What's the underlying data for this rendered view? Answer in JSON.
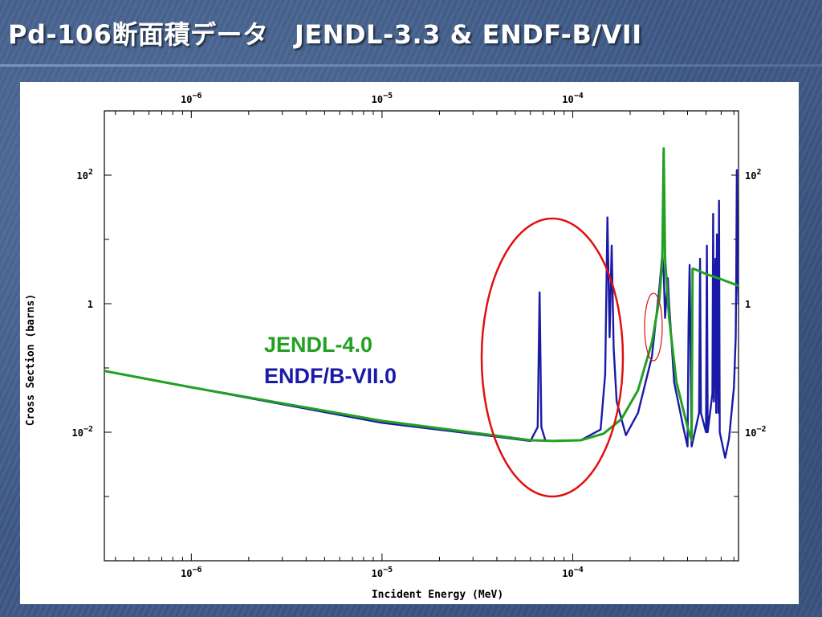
{
  "slide": {
    "title": "Pd-106断面積データ　JENDL-3.3 & ENDF-B/VII"
  },
  "chart_data": {
    "type": "line",
    "xscale": "log",
    "yscale": "log",
    "xlabel": "Incident Energy (MeV)",
    "ylabel": "Cross Section (barns)",
    "xlim": [
      3.5e-07,
      0.00074
    ],
    "ylim": [
      0.0001,
      1000
    ],
    "x_ticks": [
      {
        "value": 1e-06,
        "base": "10",
        "exp": "−6"
      },
      {
        "value": 1e-05,
        "base": "10",
        "exp": "−5"
      },
      {
        "value": 0.0001,
        "base": "10",
        "exp": "−4"
      }
    ],
    "y_ticks": [
      {
        "value": 100,
        "base": "10",
        "exp": "2"
      },
      {
        "value": 1,
        "base": "1",
        "exp": ""
      },
      {
        "value": 0.01,
        "base": "10",
        "exp": "−2"
      }
    ],
    "colors": {
      "jendl": "#22a022",
      "endf": "#1a1aa8",
      "highlight": "#e01010"
    },
    "series": [
      {
        "name": "JENDL-4.0",
        "color": "#22a022",
        "x": [
          3.5e-07,
          1e-06,
          1e-05,
          4e-05,
          6e-05,
          8e-05,
          0.00011,
          0.000145,
          0.00018,
          0.00022,
          0.00026,
          0.000285,
          0.000295,
          0.0003,
          0.000305,
          0.00032,
          0.00035,
          0.0004,
          0.00042,
          0.000425,
          0.00043,
          0.0005,
          0.0006,
          0.00074
        ],
        "y": [
          0.09,
          0.05,
          0.015,
          0.0088,
          0.0075,
          0.0073,
          0.0075,
          0.0095,
          0.016,
          0.045,
          0.25,
          1.2,
          5,
          260,
          5,
          0.6,
          0.06,
          0.012,
          0.0075,
          3.5,
          3.5,
          2.9,
          2.4,
          1.9
        ]
      },
      {
        "name": "ENDF/B-VII.0",
        "color": "#1a1aa8",
        "x": [
          3.5e-07,
          1e-06,
          1e-05,
          4e-05,
          6e-05,
          6.55e-05,
          6.7e-05,
          6.85e-05,
          7.2e-05,
          0.00011,
          0.00014,
          0.000148,
          0.000152,
          0.000156,
          0.00016,
          0.000164,
          0.00017,
          0.00019,
          0.00022,
          0.00026,
          0.000285,
          0.000295,
          0.0003,
          0.000305,
          0.000315,
          0.00032,
          0.000325,
          0.00034,
          0.00038,
          0.0004,
          0.000405,
          0.00041,
          0.00042,
          0.00046,
          0.000465,
          0.00047,
          0.0005,
          0.000505,
          0.00051,
          0.00054,
          0.000545,
          0.00055,
          0.00056,
          0.000565,
          0.00057,
          0.00058,
          0.000585,
          0.00059,
          0.00062,
          0.00063,
          0.00066,
          0.0007,
          0.000715,
          0.00072,
          0.000725,
          0.00073,
          0.00074
        ],
        "y": [
          0.09,
          0.05,
          0.014,
          0.0085,
          0.0073,
          0.012,
          1.5,
          0.012,
          0.0073,
          0.0075,
          0.011,
          0.08,
          22,
          0.3,
          8,
          0.2,
          0.03,
          0.009,
          0.02,
          0.15,
          1.8,
          6,
          3,
          0.6,
          2.5,
          1.0,
          0.5,
          0.06,
          0.012,
          0.006,
          0.5,
          4,
          0.006,
          0.02,
          5,
          0.02,
          0.01,
          8,
          0.01,
          0.04,
          25,
          0.03,
          5,
          0.02,
          12,
          0.02,
          40,
          0.01,
          0.005,
          0.004,
          0.008,
          0.05,
          0.3,
          3,
          120,
          5,
          1.0
        ]
      }
    ],
    "annotations": [
      {
        "type": "ellipse",
        "label": "large highlight ring around resonance pair"
      },
      {
        "type": "ellipse",
        "label": "small highlight ring near main peak"
      }
    ],
    "legend": {
      "position": "inside-center",
      "entries": [
        "JENDL-4.0",
        "ENDF/B-VII.0"
      ]
    },
    "grid": false
  }
}
